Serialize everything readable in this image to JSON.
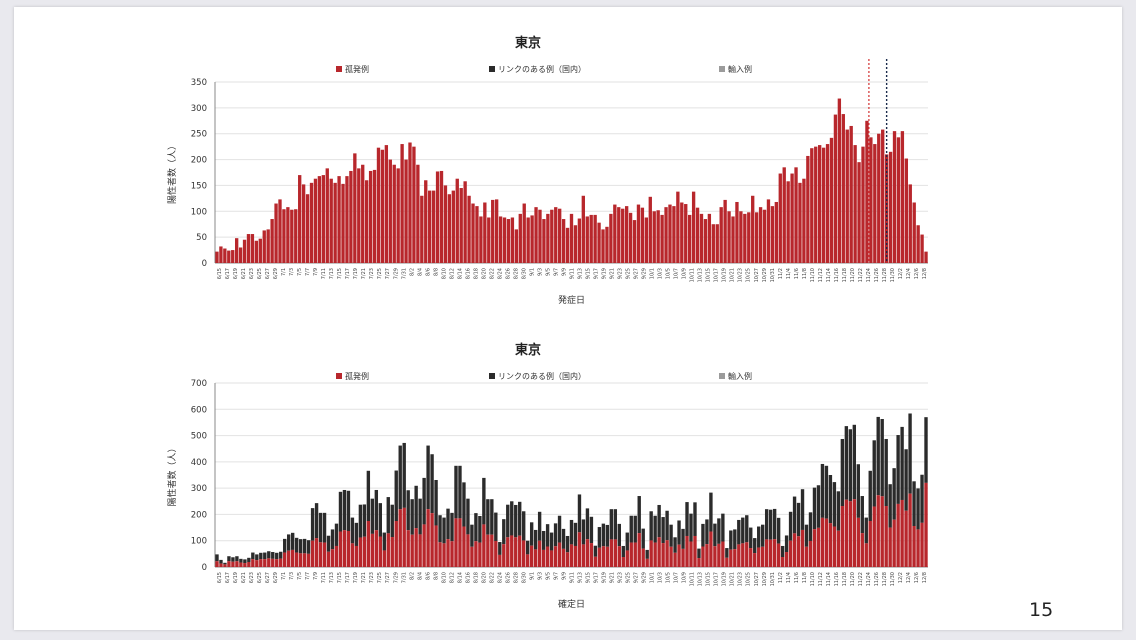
{
  "page_number": "15",
  "colors": {
    "sporadic": "#b8272c",
    "linked": "#2b2b2b",
    "imported": "#9b9b9b"
  },
  "legend": {
    "sporadic": "孤発例",
    "linked": "リンクのある例（国内）",
    "imported": "輸入例"
  },
  "chart_data": [
    {
      "type": "bar",
      "title": "東京",
      "xlabel": "発症日",
      "ylabel": "陽性者数（人）",
      "ylim": [
        0,
        350
      ],
      "yticks": [
        0,
        50,
        100,
        150,
        200,
        250,
        300,
        350
      ],
      "x_tick_labels": [
        "6/15",
        "6/17",
        "6/19",
        "6/21",
        "6/23",
        "6/25",
        "6/27",
        "6/29",
        "7/1",
        "7/3",
        "7/5",
        "7/7",
        "7/9",
        "7/11",
        "7/13",
        "7/15",
        "7/17",
        "7/19",
        "7/21",
        "7/23",
        "7/25",
        "7/27",
        "7/29",
        "7/31",
        "8/2",
        "8/4",
        "8/6",
        "8/8",
        "8/10",
        "8/12",
        "8/14",
        "8/16",
        "8/18",
        "8/20",
        "8/22",
        "8/24",
        "8/26",
        "8/28",
        "8/30",
        "9/1",
        "9/3",
        "9/5",
        "9/7",
        "9/9",
        "9/11",
        "9/13",
        "9/15",
        "9/17",
        "9/19",
        "9/21",
        "9/23",
        "9/25",
        "9/27",
        "9/29",
        "10/1",
        "10/3",
        "10/5",
        "10/7",
        "10/9",
        "10/11",
        "10/13",
        "10/15",
        "10/17",
        "10/19",
        "10/21",
        "10/23",
        "10/25",
        "10/27",
        "10/29",
        "10/31",
        "11/2",
        "11/4",
        "11/6",
        "11/8",
        "11/10",
        "11/12",
        "11/14",
        "11/16",
        "11/18",
        "11/20",
        "11/22",
        "11/24",
        "11/26",
        "11/28",
        "11/30",
        "12/2",
        "12/4",
        "12/6",
        "12/8"
      ],
      "series": [
        {
          "name": "孤発例",
          "values": [
            22,
            32,
            28,
            24,
            25,
            48,
            30,
            45,
            56,
            56,
            43,
            47,
            63,
            65,
            85,
            115,
            123,
            104,
            108,
            103,
            104,
            170,
            152,
            133,
            155,
            163,
            168,
            170,
            183,
            163,
            155,
            168,
            153,
            168,
            178,
            212,
            183,
            190,
            160,
            178,
            180,
            223,
            219,
            228,
            200,
            190,
            183,
            230,
            200,
            233,
            225,
            190,
            130,
            160,
            140,
            140,
            177,
            178,
            150,
            133,
            140,
            163,
            145,
            158,
            130,
            115,
            110,
            90,
            117,
            88,
            122,
            123,
            90,
            88,
            85,
            88,
            65,
            95,
            115,
            88,
            92,
            108,
            103,
            85,
            95,
            103,
            108,
            105,
            85,
            68,
            95,
            73,
            86,
            130,
            90,
            93,
            93,
            78,
            65,
            70,
            95,
            113,
            108,
            105,
            110,
            97,
            83,
            113,
            107,
            88,
            128,
            100,
            102,
            93,
            108,
            113,
            110,
            138,
            117,
            114,
            93,
            138,
            107,
            95,
            85,
            95,
            75,
            75,
            108,
            122,
            100,
            90,
            118,
            100,
            95,
            98,
            130,
            98,
            108,
            103,
            123,
            110,
            118,
            173,
            185,
            158,
            173,
            185,
            155,
            163,
            207,
            222,
            225,
            228,
            223,
            230,
            242,
            287,
            318,
            288,
            258,
            265,
            228,
            195,
            225,
            275,
            243,
            230,
            250,
            258
          ],
          "late_values": [
            210,
            215,
            255,
            243,
            255,
            202,
            152,
            117,
            73,
            55,
            22
          ]
        },
        {
          "name": "リンクのある例（国内）",
          "values": [
            0,
            0,
            0,
            0,
            0,
            0,
            0,
            0,
            0,
            0,
            0,
            0,
            0,
            0,
            0,
            0,
            0,
            0,
            0,
            0,
            0,
            0,
            0,
            0,
            0,
            0,
            0,
            0,
            0,
            0,
            0,
            0,
            0,
            0,
            0,
            0,
            0,
            0,
            0,
            0,
            0,
            0,
            0,
            0,
            0,
            0,
            0,
            0,
            0,
            0,
            0,
            0,
            0,
            0,
            0,
            0,
            0,
            0,
            0,
            0,
            0,
            0,
            0,
            0,
            0,
            0,
            0,
            0,
            0,
            0,
            0,
            0,
            0,
            0,
            0,
            0,
            0,
            0,
            0,
            0,
            0,
            0,
            0,
            0,
            0,
            0,
            0,
            0,
            0,
            0,
            0,
            0,
            0,
            0,
            0,
            0,
            0,
            0,
            0,
            0,
            0,
            0,
            0,
            0,
            0,
            0,
            0,
            0,
            0,
            0,
            0,
            0,
            0,
            0,
            0,
            0,
            0,
            0,
            0,
            0,
            0,
            0,
            0,
            0,
            0,
            0,
            0,
            0,
            0,
            0,
            0,
            0,
            0,
            0,
            0,
            0,
            0,
            0,
            0,
            0,
            0,
            0,
            0,
            0,
            0,
            0,
            0,
            0,
            0,
            0,
            0,
            0,
            0,
            0,
            0,
            0,
            0,
            0,
            0,
            0,
            0,
            0,
            0,
            0,
            0,
            0,
            0,
            0,
            0,
            0
          ]
        },
        {
          "name": "輸入例",
          "values": []
        }
      ]
    },
    {
      "type": "bar",
      "title": "東京",
      "xlabel": "確定日",
      "ylabel": "陽性者数（人）",
      "ylim": [
        0,
        700
      ],
      "yticks": [
        0,
        100,
        200,
        300,
        400,
        500,
        600,
        700
      ],
      "x_tick_labels": [
        "6/15",
        "6/17",
        "6/19",
        "6/21",
        "6/23",
        "6/25",
        "6/27",
        "6/29",
        "7/1",
        "7/3",
        "7/5",
        "7/7",
        "7/9",
        "7/11",
        "7/13",
        "7/15",
        "7/17",
        "7/19",
        "7/21",
        "7/23",
        "7/25",
        "7/27",
        "7/29",
        "7/31",
        "8/2",
        "8/4",
        "8/6",
        "8/8",
        "8/10",
        "8/12",
        "8/14",
        "8/16",
        "8/18",
        "8/20",
        "8/22",
        "8/24",
        "8/26",
        "8/28",
        "8/30",
        "9/1",
        "9/3",
        "9/5",
        "9/7",
        "9/9",
        "9/11",
        "9/13",
        "9/15",
        "9/17",
        "9/19",
        "9/21",
        "9/23",
        "9/25",
        "9/27",
        "9/29",
        "10/1",
        "10/3",
        "10/5",
        "10/7",
        "10/9",
        "10/11",
        "10/13",
        "10/15",
        "10/17",
        "10/19",
        "10/21",
        "10/23",
        "10/25",
        "10/27",
        "10/29",
        "10/31",
        "11/2",
        "11/4",
        "11/6",
        "11/8",
        "11/10",
        "11/12",
        "11/14",
        "11/16",
        "11/18",
        "11/20",
        "11/22",
        "11/24",
        "11/26",
        "11/28",
        "11/30",
        "12/2",
        "12/4",
        "12/6",
        "12/8"
      ],
      "totals": [
        48,
        27,
        16,
        41,
        37,
        41,
        31,
        29,
        35,
        55,
        48,
        54,
        55,
        60,
        57,
        54,
        58,
        107,
        124,
        130,
        111,
        106,
        107,
        102,
        224,
        243,
        206,
        206,
        119,
        143,
        165,
        286,
        293,
        290,
        188,
        168,
        237,
        238,
        366,
        260,
        293,
        243,
        131,
        266,
        237,
        367,
        462,
        472,
        292,
        258,
        309,
        260,
        339,
        462,
        429,
        331,
        197,
        188,
        222,
        206,
        385,
        385,
        322,
        260,
        161,
        205,
        194,
        339,
        258,
        258,
        207,
        95,
        182,
        237,
        250,
        236,
        248,
        212,
        100,
        170,
        141,
        210,
        137,
        163,
        131,
        166,
        195,
        145,
        118,
        179,
        168,
        276,
        181,
        223,
        191,
        81,
        152,
        165,
        160,
        220,
        220,
        164,
        80,
        131,
        195,
        195,
        270,
        146,
        65,
        212,
        195,
        236,
        190,
        214,
        161,
        113,
        177,
        145,
        247,
        203,
        246,
        70,
        164,
        181,
        283,
        165,
        185,
        203,
        72,
        139,
        143,
        179,
        188,
        197,
        150,
        110,
        154,
        161,
        220,
        218,
        221,
        187,
        80,
        120,
        210,
        268,
        244,
        296,
        161,
        208,
        302,
        311,
        392,
        385,
        350,
        323,
        288,
        487,
        536,
        524,
        541,
        391,
        270,
        188,
        366,
        482,
        571,
        563,
        487,
        315,
        376,
        502,
        533,
        448,
        584,
        326,
        299,
        351,
        570
      ],
      "sporadic": [
        22,
        13,
        10,
        22,
        20,
        22,
        17,
        15,
        19,
        30,
        26,
        30,
        30,
        33,
        31,
        30,
        32,
        55,
        62,
        65,
        55,
        52,
        52,
        50,
        100,
        110,
        94,
        93,
        58,
        68,
        80,
        135,
        140,
        137,
        90,
        80,
        112,
        115,
        175,
        126,
        140,
        116,
        63,
        128,
        114,
        175,
        220,
        225,
        140,
        123,
        148,
        124,
        162,
        220,
        205,
        158,
        94,
        90,
        106,
        98,
        185,
        185,
        154,
        124,
        77,
        98,
        93,
        162,
        123,
        123,
        99,
        46,
        87,
        113,
        120,
        113,
        119,
        101,
        48,
        81,
        67,
        100,
        65,
        78,
        63,
        79,
        93,
        69,
        56,
        86,
        80,
        132,
        86,
        106,
        91,
        39,
        73,
        79,
        77,
        105,
        105,
        79,
        38,
        63,
        93,
        93,
        129,
        70,
        31,
        101,
        93,
        113,
        91,
        102,
        77,
        54,
        85,
        69,
        118,
        97,
        118,
        34,
        78,
        87,
        135,
        79,
        88,
        97,
        35,
        66,
        68,
        86,
        90,
        94,
        72,
        53,
        74,
        77,
        105,
        104,
        106,
        89,
        38,
        57,
        100,
        128,
        117,
        141,
        77,
        99,
        144,
        149,
        187,
        184,
        167,
        154,
        138,
        232,
        256,
        250,
        258,
        187,
        129,
        90,
        175,
        230,
        273,
        269,
        232,
        150,
        180,
        240,
        255,
        214,
        279,
        156,
        143,
        168,
        320
      ]
    }
  ]
}
